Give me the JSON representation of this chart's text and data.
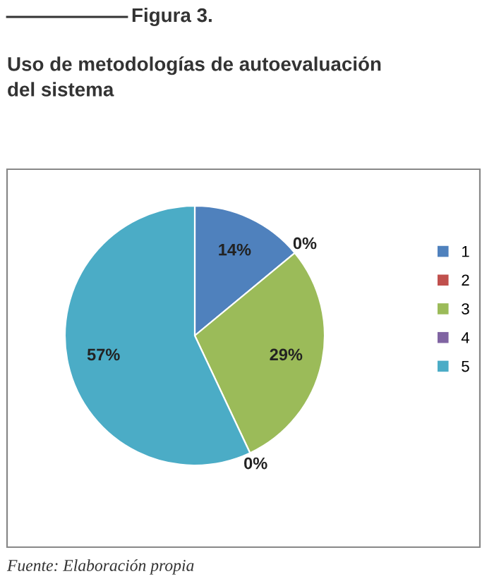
{
  "chart_data": {
    "type": "pie",
    "subtitle": "Figura 3.",
    "title": "Uso de metodologías de autoevaluación\ndel sistema",
    "categories": [
      "1",
      "2",
      "3",
      "4",
      "5"
    ],
    "values": [
      14,
      0,
      29,
      0,
      57
    ],
    "value_labels": [
      "14%",
      "0%",
      "29%",
      "0%",
      "57%"
    ],
    "colors": [
      "#4f81bd",
      "#c0504d",
      "#9bbb59",
      "#8064a2",
      "#4bacc6"
    ],
    "legend": "right",
    "annotations": [
      "Fuente: Elaboración propia"
    ]
  }
}
